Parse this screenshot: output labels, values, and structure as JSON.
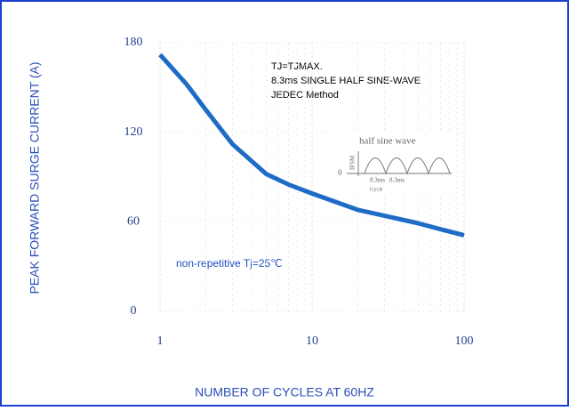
{
  "chart_data": {
    "type": "line",
    "xlabel": "NUMBER OF CYCLES AT 60HZ",
    "ylabel": "PEAK FORWARD SURGE CURRENT (A)",
    "x": [
      1,
      1.5,
      2,
      3,
      5,
      7,
      10,
      20,
      30,
      50,
      70,
      100
    ],
    "values": [
      172,
      152,
      135,
      112,
      92,
      85,
      79,
      68,
      64,
      59,
      55,
      51
    ],
    "color": "#1f6cc6",
    "xscale": "log",
    "xlim": [
      1,
      100
    ],
    "xticks": [
      1,
      10,
      100
    ],
    "x_minor_ticks": [
      2,
      3,
      4,
      5,
      6,
      7,
      8,
      9,
      20,
      30,
      40,
      50,
      60,
      70,
      80,
      90
    ],
    "ylim": [
      0,
      180
    ],
    "yticks": [
      0,
      60,
      120,
      180
    ],
    "grid": true,
    "annotations": [
      "TJ=TJMAX.",
      "8.3ms SINGLE HALF SINE-WAVE",
      "JEDEC Method"
    ],
    "note": "non-repetitive  Tj=25℃",
    "inset": {
      "title": "half sine wave",
      "zero": "0",
      "axis": "IFSM",
      "period_1": "8.3ms",
      "period_2": "8.3ms",
      "cycle": "1cycle"
    }
  }
}
